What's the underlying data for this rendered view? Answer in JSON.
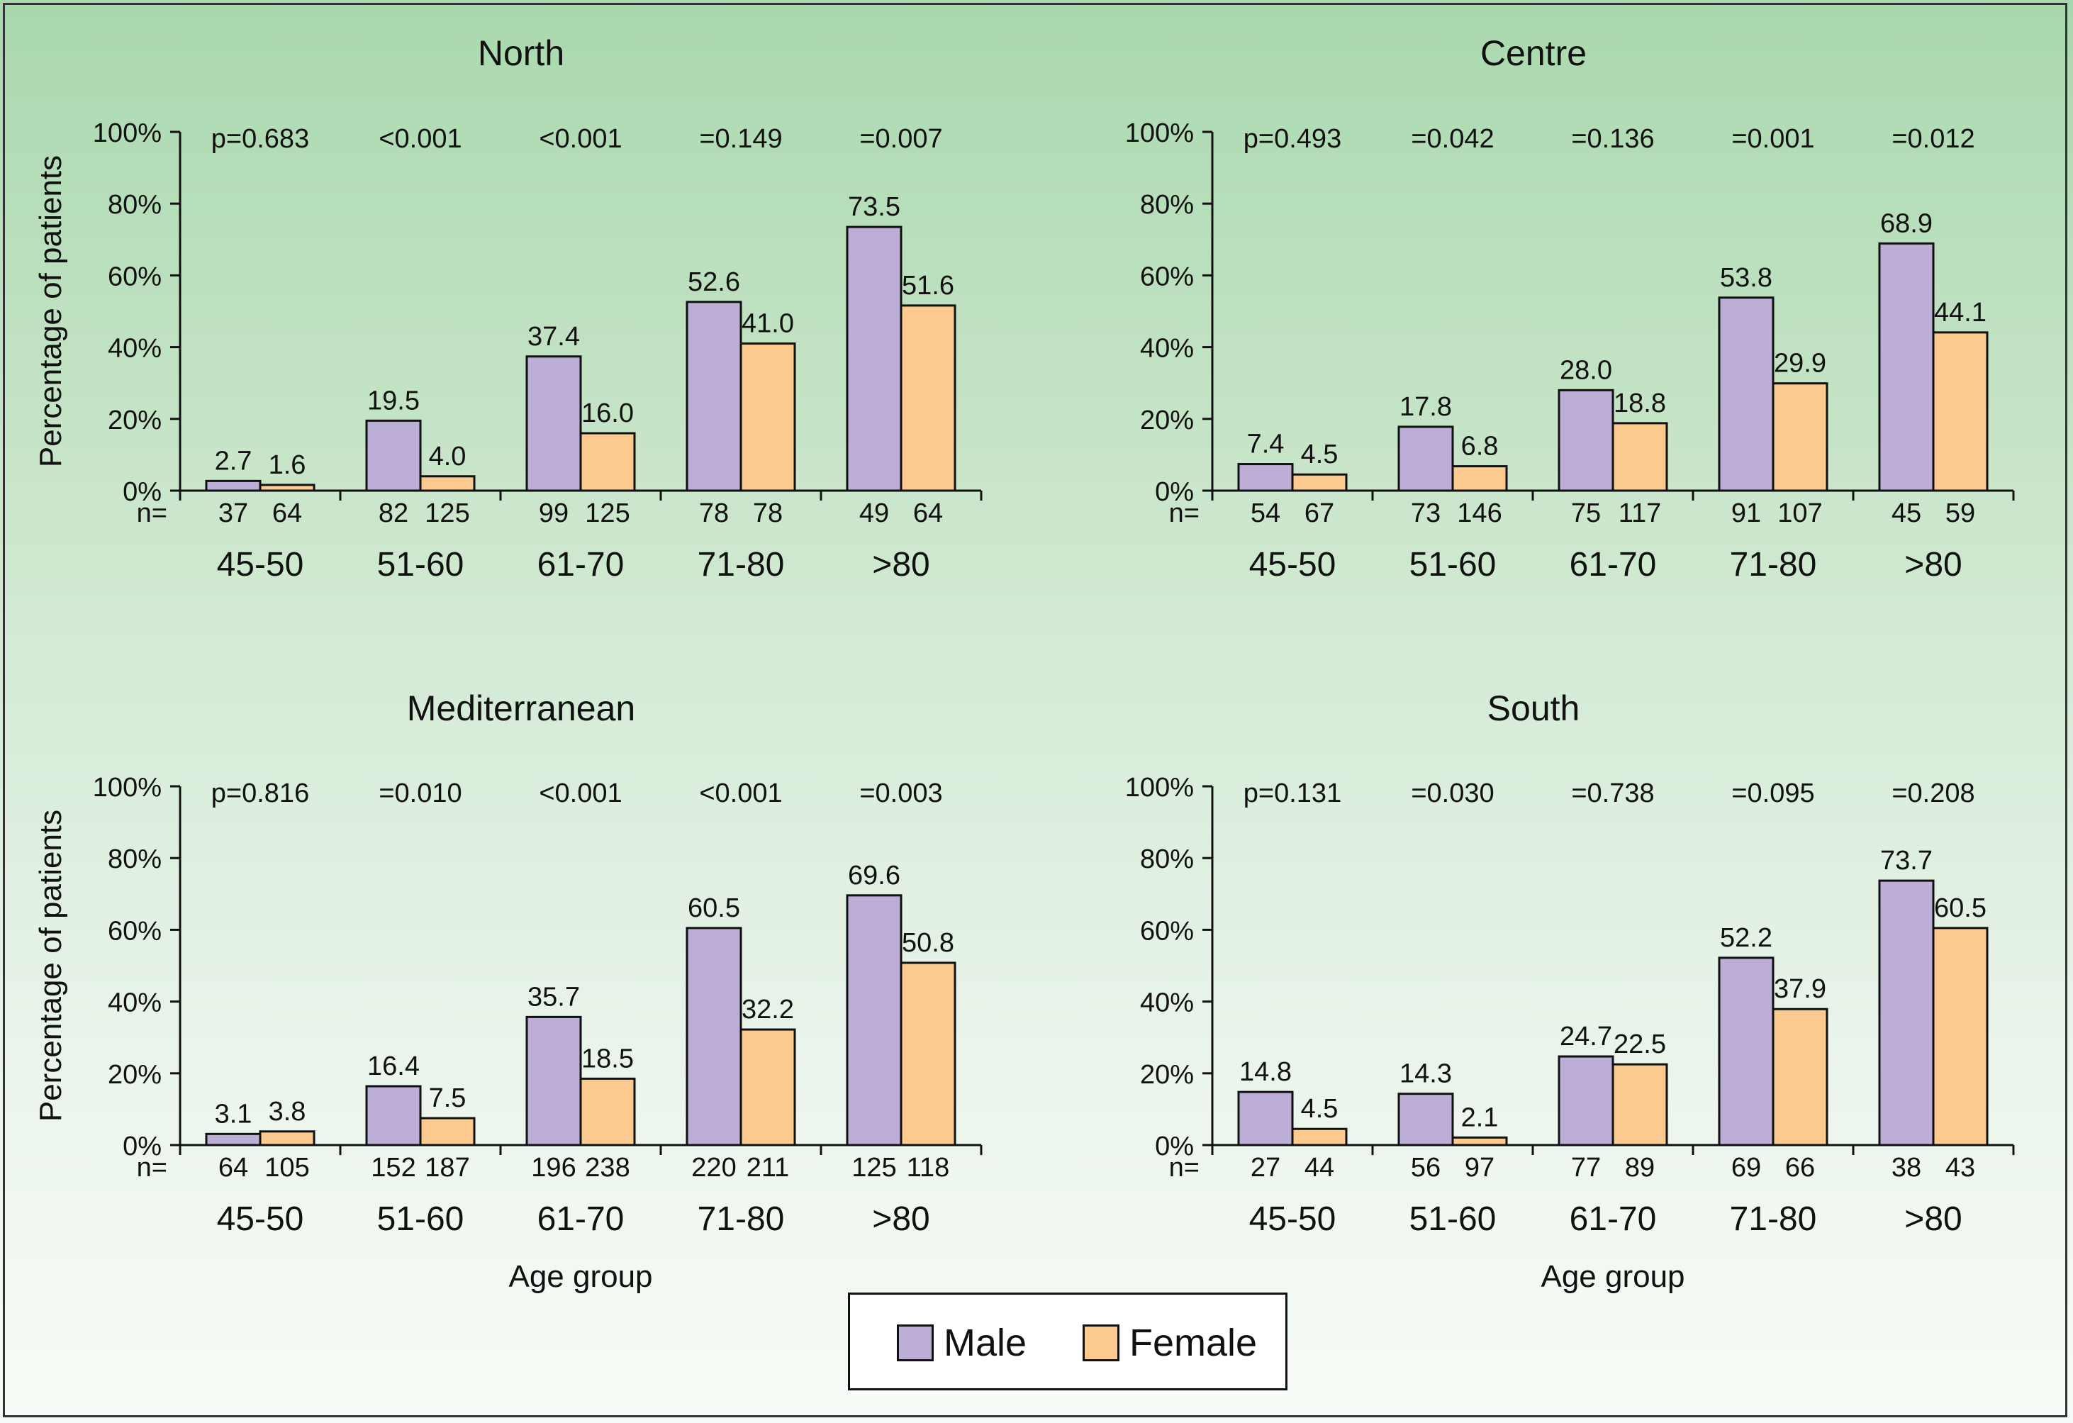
{
  "colors": {
    "male": "#bcaed6",
    "female": "#fcc98f",
    "axis": "#111111",
    "text": "#111111"
  },
  "legend": {
    "male_label": "Male",
    "female_label": "Female"
  },
  "chart_data": [
    {
      "type": "bar",
      "title": "North",
      "ylabel": "Percentage of patients",
      "xlabel": "",
      "ylim": [
        0,
        100
      ],
      "yticks": [
        "0%",
        "20%",
        "40%",
        "60%",
        "80%",
        "100%"
      ],
      "n_label": "n=",
      "categories": [
        "45-50",
        "51-60",
        "61-70",
        "71-80",
        ">80"
      ],
      "pvalues": [
        "p=0.683",
        "<0.001",
        "<0.001",
        "=0.149",
        "=0.007"
      ],
      "series": [
        {
          "name": "Male",
          "values": [
            2.7,
            19.5,
            37.4,
            52.6,
            73.5
          ],
          "labels": [
            "2.7",
            "19.5",
            "37.4",
            "52.6",
            "73.5"
          ],
          "n": [
            "37",
            "82",
            "99",
            "78",
            "49"
          ]
        },
        {
          "name": "Female",
          "values": [
            1.6,
            4.0,
            16.0,
            41.0,
            51.6
          ],
          "labels": [
            "1.6",
            "4.0",
            "16.0",
            "41.0",
            "51.6"
          ],
          "n": [
            "64",
            "125",
            "125",
            "78",
            "64"
          ]
        }
      ]
    },
    {
      "type": "bar",
      "title": "Centre",
      "ylabel": "",
      "xlabel": "",
      "ylim": [
        0,
        100
      ],
      "yticks": [
        "0%",
        "20%",
        "40%",
        "60%",
        "80%",
        "100%"
      ],
      "n_label": "n=",
      "categories": [
        "45-50",
        "51-60",
        "61-70",
        "71-80",
        ">80"
      ],
      "pvalues": [
        "p=0.493",
        "=0.042",
        "=0.136",
        "=0.001",
        "=0.012"
      ],
      "series": [
        {
          "name": "Male",
          "values": [
            7.4,
            17.8,
            28.0,
            53.8,
            68.9
          ],
          "labels": [
            "7.4",
            "17.8",
            "28.0",
            "53.8",
            "68.9"
          ],
          "n": [
            "54",
            "73",
            "75",
            "91",
            "45"
          ]
        },
        {
          "name": "Female",
          "values": [
            4.5,
            6.8,
            18.8,
            29.9,
            44.1
          ],
          "labels": [
            "4.5",
            "6.8",
            "18.8",
            "29.9",
            "44.1"
          ],
          "n": [
            "67",
            "146",
            "117",
            "107",
            "59"
          ]
        }
      ]
    },
    {
      "type": "bar",
      "title": "Mediterranean",
      "ylabel": "Percentage of patients",
      "xlabel": "Age group",
      "ylim": [
        0,
        100
      ],
      "yticks": [
        "0%",
        "20%",
        "40%",
        "60%",
        "80%",
        "100%"
      ],
      "n_label": "n=",
      "categories": [
        "45-50",
        "51-60",
        "61-70",
        "71-80",
        ">80"
      ],
      "pvalues": [
        "p=0.816",
        "=0.010",
        "<0.001",
        "<0.001",
        "=0.003"
      ],
      "series": [
        {
          "name": "Male",
          "values": [
            3.1,
            16.4,
            35.7,
            60.5,
            69.6
          ],
          "labels": [
            "3.1",
            "16.4",
            "35.7",
            "60.5",
            "69.6"
          ],
          "n": [
            "64",
            "152",
            "196",
            "220",
            "125"
          ]
        },
        {
          "name": "Female",
          "values": [
            3.8,
            7.5,
            18.5,
            32.2,
            50.8
          ],
          "labels": [
            "3.8",
            "7.5",
            "18.5",
            "32.2",
            "50.8"
          ],
          "n": [
            "105",
            "187",
            "238",
            "211",
            "118"
          ]
        }
      ]
    },
    {
      "type": "bar",
      "title": "South",
      "ylabel": "",
      "xlabel": "Age group",
      "ylim": [
        0,
        100
      ],
      "yticks": [
        "0%",
        "20%",
        "40%",
        "60%",
        "80%",
        "100%"
      ],
      "n_label": "n=",
      "categories": [
        "45-50",
        "51-60",
        "61-70",
        "71-80",
        ">80"
      ],
      "pvalues": [
        "p=0.131",
        "=0.030",
        "=0.738",
        "=0.095",
        "=0.208"
      ],
      "series": [
        {
          "name": "Male",
          "values": [
            14.8,
            14.3,
            24.7,
            52.2,
            73.7
          ],
          "labels": [
            "14.8",
            "14.3",
            "24.7",
            "52.2",
            "73.7"
          ],
          "n": [
            "27",
            "56",
            "77",
            "69",
            "38"
          ]
        },
        {
          "name": "Female",
          "values": [
            4.5,
            2.1,
            22.5,
            37.9,
            60.5
          ],
          "labels": [
            "4.5",
            "2.1",
            "22.5",
            "37.9",
            "60.5"
          ],
          "n": [
            "44",
            "97",
            "89",
            "66",
            "43"
          ]
        }
      ]
    }
  ]
}
